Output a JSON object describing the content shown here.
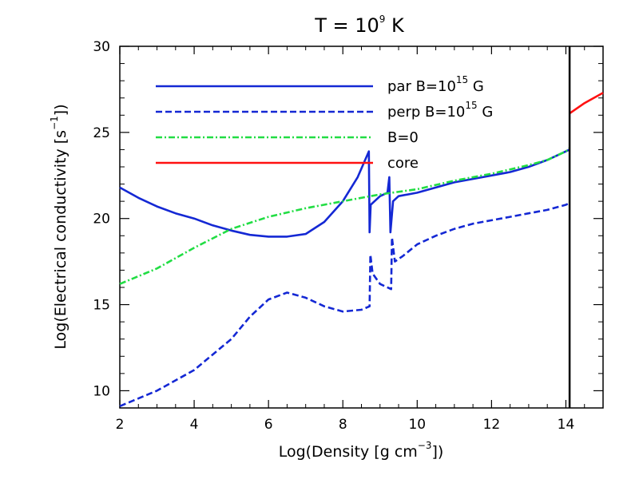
{
  "chart_data": {
    "type": "line",
    "title": {
      "main": "T = 10",
      "exponent": "9",
      "unit": " K"
    },
    "xlabel": {
      "pre": "Log(Density [g cm",
      "exponent": "−3",
      "post": "])"
    },
    "ylabel": {
      "pre": "Log(Electrical conductivity [s",
      "exponent": "−1",
      "post": "])"
    },
    "xlim": [
      2,
      15
    ],
    "ylim": [
      9,
      30
    ],
    "xticks": [
      2,
      4,
      6,
      8,
      10,
      12,
      14
    ],
    "yticks": [
      10,
      15,
      20,
      25,
      30
    ],
    "vline": {
      "x": 14.1,
      "color": "#000000"
    },
    "legend_position": "top-left",
    "series": [
      {
        "name": "par",
        "legend_label": "par B=10",
        "legend_exponent": "15",
        "legend_suffix": " G",
        "color": "#1428d4",
        "dash": "solid",
        "points": [
          [
            2,
            21.8
          ],
          [
            2.5,
            21.2
          ],
          [
            3,
            20.7
          ],
          [
            3.5,
            20.3
          ],
          [
            4,
            20.0
          ],
          [
            4.5,
            19.6
          ],
          [
            5,
            19.3
          ],
          [
            5.5,
            19.05
          ],
          [
            6,
            18.95
          ],
          [
            6.5,
            18.95
          ],
          [
            7,
            19.1
          ],
          [
            7.5,
            19.8
          ],
          [
            8,
            21.0
          ],
          [
            8.4,
            22.4
          ],
          [
            8.7,
            23.9
          ],
          [
            8.72,
            19.2
          ],
          [
            8.75,
            20.8
          ],
          [
            9,
            21.3
          ],
          [
            9.2,
            21.5
          ],
          [
            9.25,
            22.4
          ],
          [
            9.28,
            19.2
          ],
          [
            9.35,
            21.0
          ],
          [
            9.5,
            21.3
          ],
          [
            10,
            21.5
          ],
          [
            10.5,
            21.8
          ],
          [
            11,
            22.1
          ],
          [
            11.5,
            22.3
          ],
          [
            12,
            22.5
          ],
          [
            12.5,
            22.7
          ],
          [
            13,
            23.0
          ],
          [
            13.5,
            23.4
          ],
          [
            14,
            23.9
          ],
          [
            14.1,
            24.0
          ]
        ]
      },
      {
        "name": "perp",
        "legend_label": "perp B=10",
        "legend_exponent": "15",
        "legend_suffix": " G",
        "color": "#1428d4",
        "dash": "dashed",
        "points": [
          [
            2,
            9.1
          ],
          [
            3,
            10.0
          ],
          [
            4,
            11.2
          ],
          [
            5,
            13.0
          ],
          [
            5.5,
            14.3
          ],
          [
            6,
            15.3
          ],
          [
            6.5,
            15.7
          ],
          [
            7,
            15.4
          ],
          [
            7.5,
            14.9
          ],
          [
            8,
            14.6
          ],
          [
            8.5,
            14.7
          ],
          [
            8.72,
            14.9
          ],
          [
            8.74,
            17.9
          ],
          [
            8.8,
            16.8
          ],
          [
            9,
            16.2
          ],
          [
            9.3,
            15.9
          ],
          [
            9.32,
            18.9
          ],
          [
            9.4,
            17.5
          ],
          [
            9.6,
            17.8
          ],
          [
            10,
            18.5
          ],
          [
            10.5,
            19.0
          ],
          [
            11,
            19.4
          ],
          [
            11.5,
            19.7
          ],
          [
            12,
            19.9
          ],
          [
            12.5,
            20.1
          ],
          [
            13,
            20.3
          ],
          [
            13.5,
            20.5
          ],
          [
            14,
            20.8
          ],
          [
            14.1,
            20.9
          ]
        ]
      },
      {
        "name": "B=0",
        "legend_label": "B=0",
        "legend_exponent": "",
        "legend_suffix": "",
        "color": "#22dd44",
        "dash": "dashdot",
        "points": [
          [
            2,
            16.2
          ],
          [
            3,
            17.1
          ],
          [
            4,
            18.3
          ],
          [
            5,
            19.4
          ],
          [
            6,
            20.1
          ],
          [
            7,
            20.6
          ],
          [
            8,
            21.0
          ],
          [
            9,
            21.4
          ],
          [
            10,
            21.7
          ],
          [
            11,
            22.2
          ],
          [
            12,
            22.6
          ],
          [
            13,
            23.1
          ],
          [
            13.5,
            23.4
          ],
          [
            14,
            23.9
          ],
          [
            14.1,
            24.1
          ]
        ]
      },
      {
        "name": "core",
        "legend_label": "core",
        "legend_exponent": "",
        "legend_suffix": "",
        "color": "#ff1111",
        "dash": "solid",
        "points": [
          [
            14.1,
            26.1
          ],
          [
            14.5,
            26.7
          ],
          [
            15,
            27.3
          ]
        ]
      }
    ]
  }
}
